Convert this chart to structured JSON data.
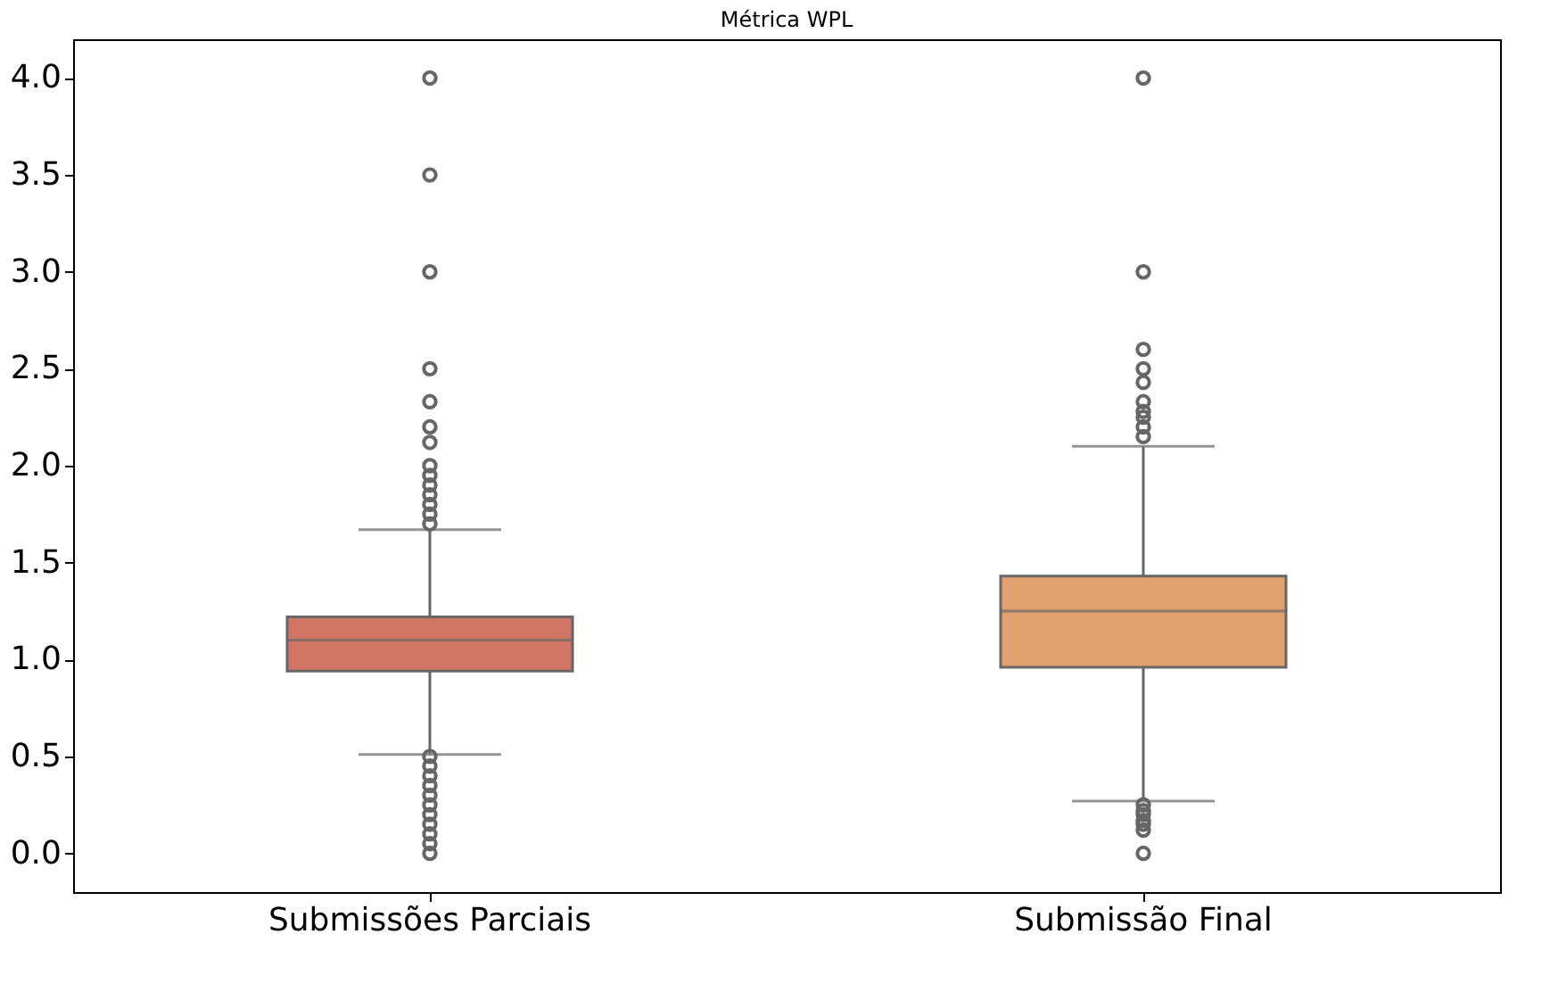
{
  "chart_data": {
    "type": "box",
    "title": "Métrica WPL",
    "categories": [
      "Submissões Parciais",
      "Submissão Final"
    ],
    "colors": [
      "#d27565",
      "#e2a06f"
    ],
    "boxes": [
      {
        "low": 0.51,
        "q1": 0.94,
        "median": 1.1,
        "q3": 1.22,
        "high": 1.67,
        "outliers": [
          4.0,
          3.5,
          3.0,
          2.5,
          2.33,
          2.2,
          2.12,
          2.0,
          1.95,
          1.9,
          1.85,
          1.8,
          1.75,
          1.7,
          0.5,
          0.45,
          0.4,
          0.35,
          0.3,
          0.25,
          0.2,
          0.15,
          0.1,
          0.05,
          0.0
        ]
      },
      {
        "low": 0.27,
        "q1": 0.96,
        "median": 1.25,
        "q3": 1.43,
        "high": 2.1,
        "outliers": [
          4.0,
          3.0,
          2.6,
          2.5,
          2.43,
          2.33,
          2.28,
          2.25,
          2.2,
          2.15,
          0.25,
          0.22,
          0.2,
          0.17,
          0.15,
          0.12,
          0.0
        ]
      }
    ],
    "ylim": [
      -0.2,
      4.2
    ],
    "yticks": [
      {
        "value": 0,
        "label": "0.0"
      },
      0.5,
      {
        "value": 1,
        "label": "1.0"
      },
      1.5,
      {
        "value": 2,
        "label": "2.0"
      },
      2.5,
      {
        "value": 3,
        "label": "3.0"
      },
      3.5,
      {
        "value": 4,
        "label": "4.0"
      }
    ]
  }
}
